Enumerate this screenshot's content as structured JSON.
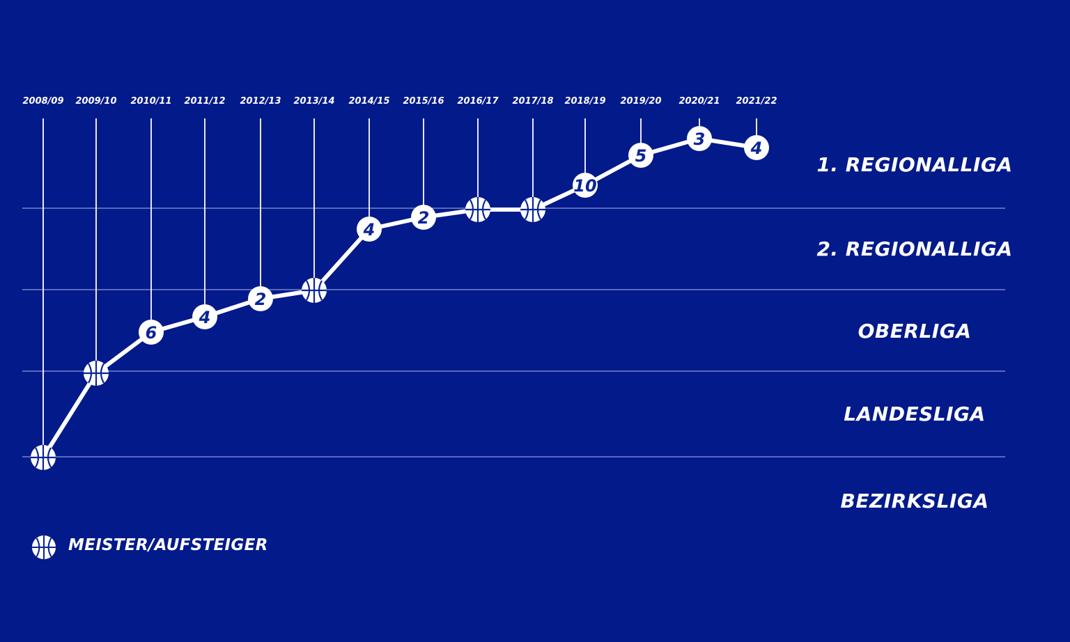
{
  "colors": {
    "background": "#031a8a",
    "line": "#ffffff",
    "marker_text": "#0b2596",
    "grid": "#8d9bd6"
  },
  "legend": {
    "icon": "basketball-icon",
    "label": "MEISTER/AUFSTEIGER"
  },
  "chart_data": {
    "type": "line",
    "title": "",
    "xlabel": "",
    "ylabel": "",
    "legend_position": "bottom-left",
    "grid": "horizontal separators between leagues",
    "leagues": [
      "1. REGIONALLIGA",
      "2. REGIONALLIGA",
      "OBERLIGA",
      "LANDESLIGA",
      "BEZIRKSLIGA"
    ],
    "seasons": [
      "2008/09",
      "2009/10",
      "2010/11",
      "2011/12",
      "2012/13",
      "2013/14",
      "2014/15",
      "2015/16",
      "2016/17",
      "2017/18",
      "2018/19",
      "2019/20",
      "2020/21",
      "2021/22"
    ],
    "league_per_season": [
      "BEZIRKSLIGA",
      "LANDESLIGA",
      "OBERLIGA",
      "OBERLIGA",
      "OBERLIGA",
      "OBERLIGA",
      "2. REGIONALLIGA",
      "2. REGIONALLIGA",
      "2. REGIONALLIGA",
      "2. REGIONALLIGA",
      "1. REGIONALLIGA",
      "1. REGIONALLIGA",
      "1. REGIONALLIGA",
      "1. REGIONALLIGA"
    ],
    "placements": [
      "meister",
      "meister",
      "6",
      "4",
      "2",
      "meister",
      "4",
      "2",
      "meister",
      "meister",
      "10",
      "5",
      "3",
      "4"
    ]
  }
}
